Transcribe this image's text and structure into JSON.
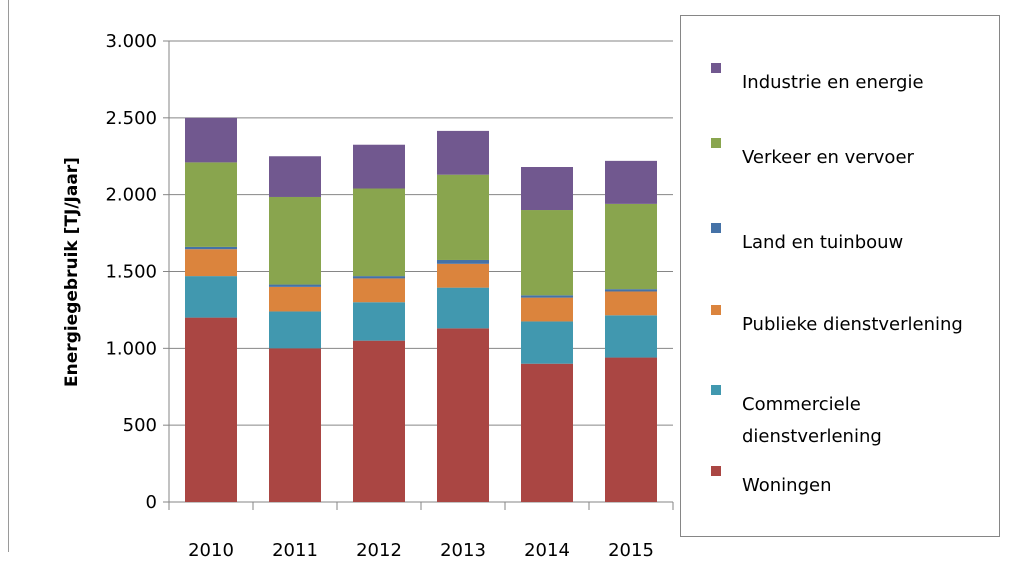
{
  "chart_data": {
    "type": "stacked_bar",
    "y_label": "Energiegebruik [TJ/Jaar]",
    "categories": [
      "2010",
      "2011",
      "2012",
      "2013",
      "2014",
      "2015"
    ],
    "series": [
      {
        "name": "Woningen",
        "color": "#aa4643",
        "values": [
          1200,
          1000,
          1050,
          1130,
          900,
          940
        ]
      },
      {
        "name": "Commerciele dienstverlening",
        "color": "#4198af",
        "values": [
          270,
          240,
          250,
          265,
          275,
          275
        ]
      },
      {
        "name": "Publieke dienstverlening",
        "color": "#db843d",
        "values": [
          175,
          160,
          155,
          155,
          155,
          155
        ]
      },
      {
        "name": "Land en tuinbouw",
        "color": "#4572a7",
        "values": [
          15,
          15,
          15,
          25,
          15,
          15
        ]
      },
      {
        "name": "Verkeer en vervoer",
        "color": "#89a54e",
        "values": [
          550,
          570,
          570,
          555,
          555,
          555
        ]
      },
      {
        "name": "Industrie en energie",
        "color": "#71588f",
        "values": [
          290,
          265,
          285,
          285,
          280,
          280
        ]
      }
    ],
    "ylim": [
      0,
      3000
    ],
    "yticks": [
      0,
      500,
      {
        "value": 1000,
        "label": "1.000"
      },
      {
        "value": 1500,
        "label": "1.500"
      },
      {
        "value": 2000,
        "label": "2.000"
      },
      {
        "value": 2500,
        "label": "2.500"
      },
      {
        "value": 3000,
        "label": "3.000"
      }
    ],
    "grid": true
  }
}
